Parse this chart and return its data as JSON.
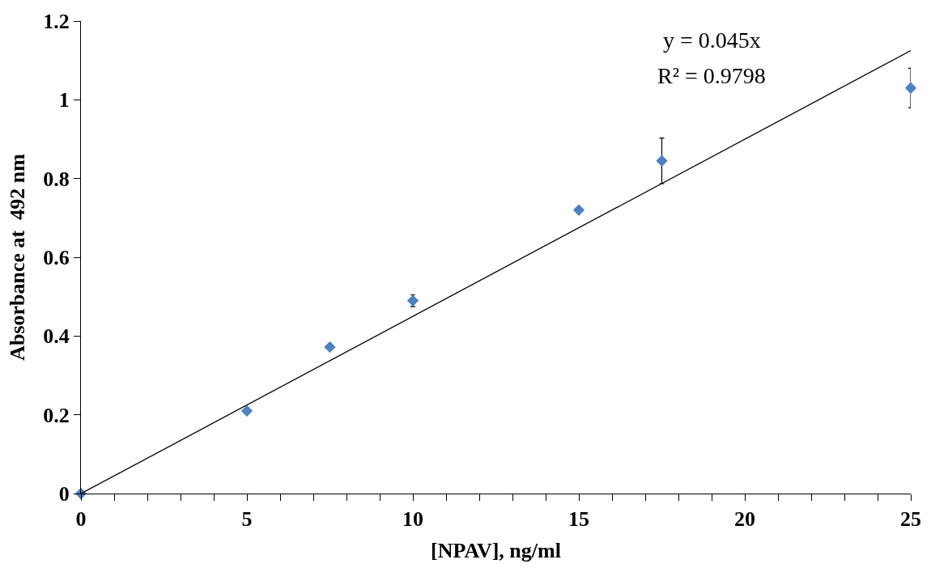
{
  "chart_data": {
    "type": "scatter",
    "xlabel": "[NPAV], ng/ml",
    "ylabel": "Absorbance at  492 nm",
    "x": [
      0,
      5,
      7.5,
      10,
      15,
      17.5,
      25
    ],
    "series": [
      {
        "color": "#4f81bd",
        "marker": "diamond",
        "values": [
          0,
          0.21,
          0.372,
          0.49,
          0.72,
          0.845,
          1.03
        ],
        "errors": [
          null,
          null,
          null,
          0.015,
          null,
          0.058,
          0.05
        ]
      },
      {
        "type": "line",
        "color": "#000000",
        "x": [
          0,
          25
        ],
        "values": [
          0,
          1.125
        ]
      }
    ],
    "annotations": [
      "y = 0.045x",
      "R² = 0.9798"
    ],
    "xlim": [
      0,
      25
    ],
    "ylim": [
      0,
      1.2
    ],
    "xticks": [
      0,
      {
        "value": 1,
        "label": null
      },
      {
        "value": 2,
        "label": null
      },
      {
        "value": 3,
        "label": null
      },
      {
        "value": 4,
        "label": null
      },
      5,
      {
        "value": 6,
        "label": null
      },
      {
        "value": 7,
        "label": null
      },
      {
        "value": 8,
        "label": null
      },
      {
        "value": 9,
        "label": null
      },
      10,
      {
        "value": 11,
        "label": null
      },
      {
        "value": 12,
        "label": null
      },
      {
        "value": 13,
        "label": null
      },
      {
        "value": 14,
        "label": null
      },
      15,
      {
        "value": 16,
        "label": null
      },
      {
        "value": 17,
        "label": null
      },
      {
        "value": 18,
        "label": null
      },
      {
        "value": 19,
        "label": null
      },
      20,
      {
        "value": 21,
        "label": null
      },
      {
        "value": 22,
        "label": null
      },
      {
        "value": 23,
        "label": null
      },
      {
        "value": 24,
        "label": null
      },
      25
    ],
    "yticks": [
      0,
      0.2,
      0.4,
      0.6,
      0.8,
      1,
      1.2
    ]
  }
}
